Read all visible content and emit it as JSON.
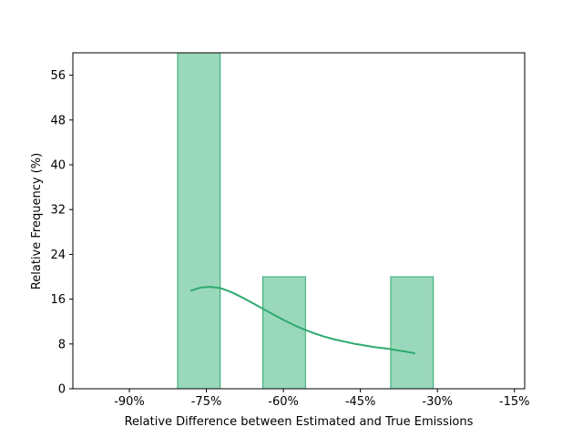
{
  "chart_data": {
    "type": "bar",
    "subtype": "histogram-with-kde",
    "title": "",
    "xlabel": "Relative Difference between Estimated and True Emissions",
    "ylabel": "Relative Frequency (%)",
    "xlim": [
      -101,
      -13
    ],
    "ylim": [
      0,
      60
    ],
    "x_ticks": [
      -90,
      -75,
      -60,
      -45,
      -30,
      -15
    ],
    "x_tick_labels": [
      "-90%",
      "-75%",
      "-60%",
      "-45%",
      "-30%",
      "-15%"
    ],
    "y_ticks": [
      0,
      8,
      16,
      24,
      32,
      40,
      48,
      56
    ],
    "y_tick_labels": [
      "0",
      "8",
      "16",
      "24",
      "32",
      "40",
      "48",
      "56"
    ],
    "bins": [
      {
        "x0": -97.2,
        "x1": -88.9,
        "value": 0
      },
      {
        "x0": -88.9,
        "x1": -80.6,
        "value": 0
      },
      {
        "x0": -80.6,
        "x1": -72.3,
        "value": 60
      },
      {
        "x0": -72.3,
        "x1": -64.0,
        "value": 0
      },
      {
        "x0": -64.0,
        "x1": -55.7,
        "value": 20
      },
      {
        "x0": -55.7,
        "x1": -47.4,
        "value": 0
      },
      {
        "x0": -47.4,
        "x1": -39.1,
        "value": 0
      },
      {
        "x0": -39.1,
        "x1": -30.8,
        "value": 20
      },
      {
        "x0": -30.8,
        "x1": -22.5,
        "value": 0
      },
      {
        "x0": -22.5,
        "x1": -14.2,
        "value": 0
      }
    ],
    "kde": {
      "x": [
        -78.1,
        -76.0,
        -74.0,
        -72.0,
        -70.0,
        -68.0,
        -66.0,
        -64.0,
        -62.0,
        -60.0,
        -58.0,
        -56.0,
        -54.0,
        -52.0,
        -50.0,
        -48.0,
        -46.0,
        -44.0,
        -42.0,
        -40.0,
        -38.0,
        -36.0,
        -34.3
      ],
      "y": [
        17.5,
        18.1,
        18.2,
        17.9,
        17.2,
        16.3,
        15.3,
        14.3,
        13.3,
        12.3,
        11.4,
        10.6,
        9.9,
        9.3,
        8.8,
        8.4,
        8.0,
        7.7,
        7.4,
        7.2,
        6.9,
        6.6,
        6.3
      ]
    },
    "colors": {
      "fill": "#99d8bb",
      "edge": "#2eaa6f",
      "kde": "#2eaa6f"
    },
    "grid": false,
    "legend": "none"
  }
}
